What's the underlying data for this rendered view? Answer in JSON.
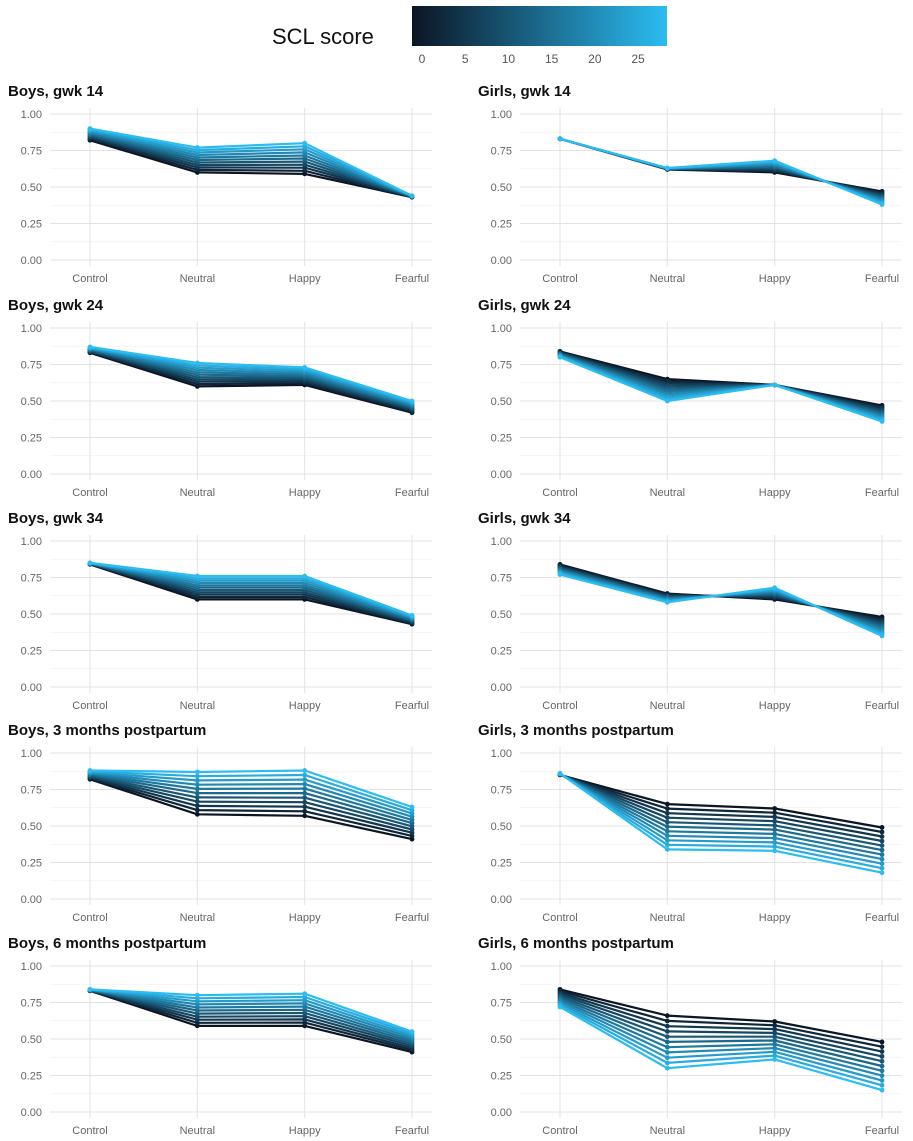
{
  "legend": {
    "title": "SCL score",
    "color_low": "#0b1524",
    "color_high": "#2bbcf2",
    "ticks": [
      "0",
      "5",
      "10",
      "15",
      "20",
      "25"
    ],
    "range": [
      0,
      28
    ]
  },
  "chart_data": [
    {
      "type": "line",
      "title": "Boys, gwk 14",
      "categories": [
        "Control",
        "Neutral",
        "Happy",
        "Fearful"
      ],
      "ylim": [
        0,
        1
      ],
      "yticks": [
        "0.00",
        "0.25",
        "0.50",
        "0.75",
        "1.00"
      ],
      "grid": true,
      "series_low_scl": [
        0.82,
        0.6,
        0.59,
        0.43
      ],
      "series_high_scl": [
        0.9,
        0.77,
        0.8,
        0.44
      ]
    },
    {
      "type": "line",
      "title": "Girls, gwk 14",
      "categories": [
        "Control",
        "Neutral",
        "Happy",
        "Fearful"
      ],
      "ylim": [
        0,
        1
      ],
      "yticks": [
        "0.00",
        "0.25",
        "0.50",
        "0.75",
        "1.00"
      ],
      "grid": true,
      "series_low_scl": [
        0.83,
        0.62,
        0.6,
        0.47
      ],
      "series_high_scl": [
        0.83,
        0.63,
        0.68,
        0.38
      ]
    },
    {
      "type": "line",
      "title": "Boys, gwk 24",
      "categories": [
        "Control",
        "Neutral",
        "Happy",
        "Fearful"
      ],
      "ylim": [
        0,
        1
      ],
      "yticks": [
        "0.00",
        "0.25",
        "0.50",
        "0.75",
        "1.00"
      ],
      "grid": true,
      "series_low_scl": [
        0.83,
        0.6,
        0.61,
        0.42
      ],
      "series_high_scl": [
        0.87,
        0.76,
        0.73,
        0.5
      ]
    },
    {
      "type": "line",
      "title": "Girls, gwk 24",
      "categories": [
        "Control",
        "Neutral",
        "Happy",
        "Fearful"
      ],
      "ylim": [
        0,
        1
      ],
      "yticks": [
        "0.00",
        "0.25",
        "0.50",
        "0.75",
        "1.00"
      ],
      "grid": true,
      "series_low_scl": [
        0.84,
        0.65,
        0.61,
        0.47
      ],
      "series_high_scl": [
        0.8,
        0.5,
        0.61,
        0.36
      ]
    },
    {
      "type": "line",
      "title": "Boys, gwk 34",
      "categories": [
        "Control",
        "Neutral",
        "Happy",
        "Fearful"
      ],
      "ylim": [
        0,
        1
      ],
      "yticks": [
        "0.00",
        "0.25",
        "0.50",
        "0.75",
        "1.00"
      ],
      "grid": true,
      "series_low_scl": [
        0.84,
        0.6,
        0.6,
        0.43
      ],
      "series_high_scl": [
        0.85,
        0.76,
        0.76,
        0.49
      ]
    },
    {
      "type": "line",
      "title": "Girls, gwk 34",
      "categories": [
        "Control",
        "Neutral",
        "Happy",
        "Fearful"
      ],
      "ylim": [
        0,
        1
      ],
      "yticks": [
        "0.00",
        "0.25",
        "0.50",
        "0.75",
        "1.00"
      ],
      "grid": true,
      "series_low_scl": [
        0.84,
        0.64,
        0.6,
        0.48
      ],
      "series_high_scl": [
        0.77,
        0.58,
        0.68,
        0.35
      ]
    },
    {
      "type": "line",
      "title": "Boys, 3 months postpartum",
      "categories": [
        "Control",
        "Neutral",
        "Happy",
        "Fearful"
      ],
      "ylim": [
        0,
        1
      ],
      "yticks": [
        "0.00",
        "0.25",
        "0.50",
        "0.75",
        "1.00"
      ],
      "grid": true,
      "series_low_scl": [
        0.82,
        0.58,
        0.57,
        0.41
      ],
      "series_high_scl": [
        0.88,
        0.87,
        0.88,
        0.63
      ]
    },
    {
      "type": "line",
      "title": "Girls, 3 months postpartum",
      "categories": [
        "Control",
        "Neutral",
        "Happy",
        "Fearful"
      ],
      "ylim": [
        0,
        1
      ],
      "yticks": [
        "0.00",
        "0.25",
        "0.50",
        "0.75",
        "1.00"
      ],
      "grid": true,
      "series_low_scl": [
        0.85,
        0.65,
        0.62,
        0.49
      ],
      "series_high_scl": [
        0.86,
        0.34,
        0.33,
        0.18
      ]
    },
    {
      "type": "line",
      "title": "Boys, 6 months postpartum",
      "categories": [
        "Control",
        "Neutral",
        "Happy",
        "Fearful"
      ],
      "ylim": [
        0,
        1
      ],
      "yticks": [
        "0.00",
        "0.25",
        "0.50",
        "0.75",
        "1.00"
      ],
      "grid": true,
      "series_low_scl": [
        0.83,
        0.59,
        0.59,
        0.41
      ],
      "series_high_scl": [
        0.84,
        0.8,
        0.81,
        0.55
      ]
    },
    {
      "type": "line",
      "title": "Girls, 6 months postpartum",
      "categories": [
        "Control",
        "Neutral",
        "Happy",
        "Fearful"
      ],
      "ylim": [
        0,
        1
      ],
      "yticks": [
        "0.00",
        "0.25",
        "0.50",
        "0.75",
        "1.00"
      ],
      "grid": true,
      "series_low_scl": [
        0.84,
        0.66,
        0.62,
        0.48
      ],
      "series_high_scl": [
        0.72,
        0.3,
        0.36,
        0.15
      ]
    }
  ]
}
